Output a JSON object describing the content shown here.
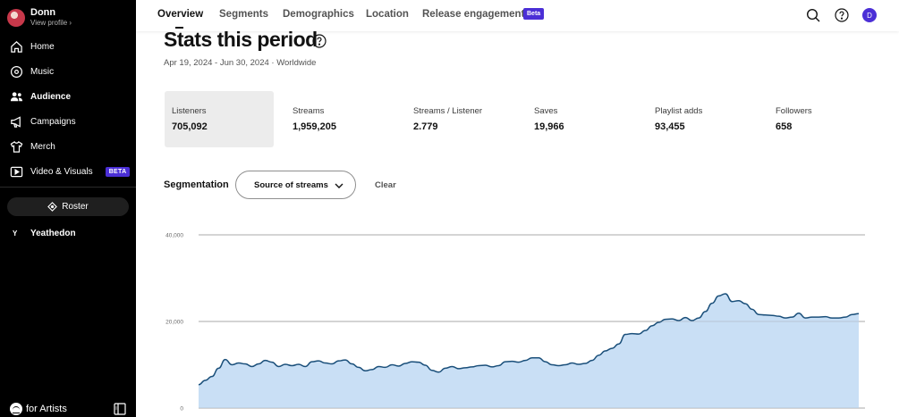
{
  "profile": {
    "name": "Donn",
    "sub": "View profile ›"
  },
  "sidebar": {
    "items": [
      {
        "label": "Home",
        "icon": "home-icon"
      },
      {
        "label": "Music",
        "icon": "music-icon"
      },
      {
        "label": "Audience",
        "icon": "audience-icon",
        "active": true
      },
      {
        "label": "Campaigns",
        "icon": "megaphone-icon"
      },
      {
        "label": "Merch",
        "icon": "shirt-icon"
      },
      {
        "label": "Video & Visuals",
        "icon": "video-icon",
        "badge": "BETA"
      }
    ],
    "roster_label": "Roster",
    "artist": {
      "initial": "Y",
      "name": "Yeathedon"
    },
    "brand": "for Artists"
  },
  "tabs": [
    {
      "label": "Overview",
      "active": true
    },
    {
      "label": "Segments"
    },
    {
      "label": "Demographics"
    },
    {
      "label": "Location"
    },
    {
      "label": "Release engagement"
    }
  ],
  "tab_badge": "Beta",
  "user_initial": "D",
  "page": {
    "title": "Stats this period",
    "date_range": "Apr 19, 2024 - Jun 30, 2024 · Worldwide"
  },
  "stats": [
    {
      "label": "Listeners",
      "value": "705,092",
      "active": true
    },
    {
      "label": "Streams",
      "value": "1,959,205"
    },
    {
      "label": "Streams / Listener",
      "value": "2.779"
    },
    {
      "label": "Saves",
      "value": "19,966"
    },
    {
      "label": "Playlist adds",
      "value": "93,455"
    },
    {
      "label": "Followers",
      "value": "658"
    }
  ],
  "segmentation": {
    "label": "Segmentation",
    "selected": "Source of streams",
    "clear_label": "Clear"
  },
  "chart_data": {
    "type": "area",
    "y_ticks": [
      "40,000",
      "20,000",
      "0"
    ],
    "ylim": [
      0,
      40000
    ],
    "grid": true,
    "colors": {
      "fill": "#c9dff5",
      "line": "#1a4f7a",
      "grid": "#9a9a9a"
    },
    "values": [
      5400,
      6400,
      7300,
      9200,
      11200,
      10000,
      10400,
      10200,
      9600,
      10200,
      11000,
      10600,
      9600,
      10100,
      9800,
      10100,
      9600,
      10700,
      10900,
      10400,
      10200,
      10900,
      11100,
      10200,
      9400,
      8600,
      8900,
      9600,
      9400,
      10000,
      9700,
      10300,
      10700,
      10600,
      9900,
      8700,
      8300,
      9200,
      9600,
      9100,
      9300,
      9500,
      9800,
      9900,
      9500,
      9800,
      10700,
      10800,
      10600,
      11000,
      11600,
      11600,
      10700,
      10000,
      9800,
      10000,
      10400,
      10100,
      10300,
      11000,
      12200,
      13200,
      13800,
      14800,
      17000,
      17200,
      17100,
      17900,
      19000,
      19800,
      20500,
      20600,
      20200,
      20900,
      20200,
      20800,
      22300,
      24200,
      25900,
      26400,
      24600,
      24800,
      24100,
      22800,
      21600,
      21500,
      21400,
      21200,
      20800,
      21000,
      21900,
      20800,
      21000,
      21000,
      21100,
      20800,
      20800,
      21000,
      21600,
      21800
    ]
  }
}
